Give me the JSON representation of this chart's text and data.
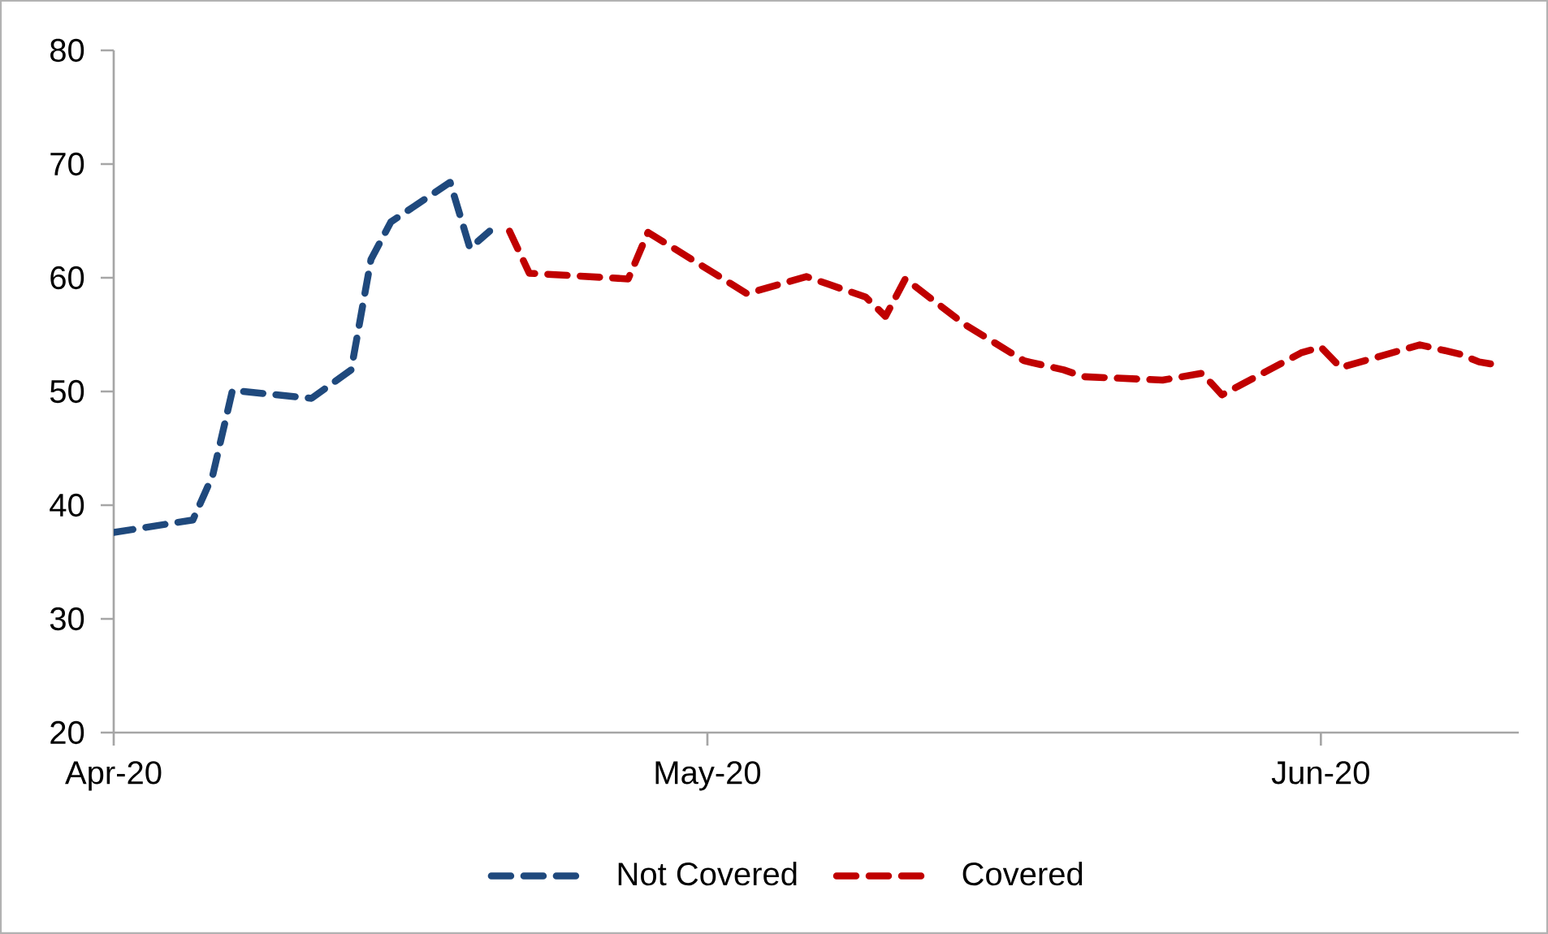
{
  "chart_data": {
    "type": "line",
    "line_style": "dashed",
    "marker": "none",
    "grid": false,
    "legend": "bottom",
    "xlim": [
      "2020-04-01",
      "2020-06-11"
    ],
    "xticks": [
      {
        "value": "2020-04-01",
        "label": "Apr-20"
      },
      {
        "value": "2020-05-01",
        "label": "May-20"
      },
      {
        "value": "2020-06-01",
        "label": "Jun-20"
      }
    ],
    "ylim": [
      20,
      80
    ],
    "yticks": [
      20,
      30,
      40,
      50,
      60,
      70,
      80
    ],
    "series": [
      {
        "name": "Not Covered",
        "color": "#1f497d",
        "x": [
          "2020-04-01",
          "2020-04-05",
          "2020-04-06",
          "2020-04-07",
          "2020-04-11",
          "2020-04-13",
          "2020-04-14",
          "2020-04-15",
          "2020-04-18",
          "2020-04-19",
          "2020-04-20"
        ],
        "values": [
          37.6,
          38.7,
          42.6,
          50.1,
          49.4,
          51.9,
          61.6,
          64.9,
          68.4,
          62.6,
          64.1
        ]
      },
      {
        "name": "Covered",
        "color": "#c00000",
        "x": [
          "2020-04-21",
          "2020-04-22",
          "2020-04-27",
          "2020-04-28",
          "2020-05-03",
          "2020-05-06",
          "2020-05-09",
          "2020-05-10",
          "2020-05-11",
          "2020-05-14",
          "2020-05-17",
          "2020-05-19",
          "2020-05-20",
          "2020-05-24",
          "2020-05-26",
          "2020-05-27",
          "2020-05-31",
          "2020-06-01",
          "2020-06-02",
          "2020-06-06",
          "2020-06-08",
          "2020-06-09",
          "2020-06-10"
        ],
        "values": [
          64.1,
          60.4,
          59.9,
          64.0,
          58.6,
          60.1,
          58.3,
          56.6,
          59.9,
          55.9,
          52.7,
          51.9,
          51.3,
          51.0,
          51.6,
          49.7,
          53.4,
          53.9,
          52.1,
          54.1,
          53.3,
          52.6,
          52.3
        ]
      }
    ]
  }
}
